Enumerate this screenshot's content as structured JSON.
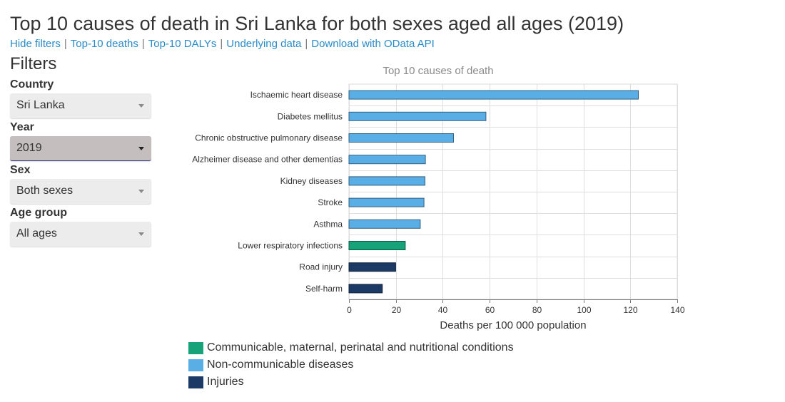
{
  "page": {
    "title": "Top 10 causes of death in Sri Lanka for both sexes aged all ages (2019)",
    "links": [
      "Hide filters",
      "Top-10 deaths",
      "Top-10 DALYs",
      "Underlying data",
      "Download with OData API"
    ]
  },
  "filters": {
    "title": "Filters",
    "country": {
      "label": "Country",
      "value": "Sri Lanka"
    },
    "year": {
      "label": "Year",
      "value": "2019"
    },
    "sex": {
      "label": "Sex",
      "value": "Both sexes"
    },
    "age_group": {
      "label": "Age group",
      "value": "All ages"
    }
  },
  "colors": {
    "communicable": "#16a37a",
    "noncommunicable": "#5aaee6",
    "injuries": "#1c3a66"
  },
  "chart_data": {
    "type": "bar",
    "orientation": "horizontal",
    "title": "Top 10 causes of death",
    "xlabel": "Deaths per 100 000 population",
    "ylabel": "",
    "xlim": [
      0,
      140
    ],
    "xticks": [
      0,
      20,
      40,
      60,
      80,
      100,
      120,
      140
    ],
    "grid": true,
    "categories": [
      "Ischaemic heart disease",
      "Diabetes mellitus",
      "Chronic obstructive pulmonary disease",
      "Alzheimer disease and other dementias",
      "Kidney diseases",
      "Stroke",
      "Asthma",
      "Lower respiratory infections",
      "Road injury",
      "Self-harm"
    ],
    "values": [
      123.4,
      58.4,
      44.6,
      32.6,
      32.4,
      32.0,
      30.4,
      24.0,
      19.9,
      14.2
    ],
    "groups": [
      "noncommunicable",
      "noncommunicable",
      "noncommunicable",
      "noncommunicable",
      "noncommunicable",
      "noncommunicable",
      "noncommunicable",
      "communicable",
      "injuries",
      "injuries"
    ],
    "legend": [
      {
        "key": "communicable",
        "label": "Communicable, maternal, perinatal and nutritional conditions"
      },
      {
        "key": "noncommunicable",
        "label": "Non-communicable diseases"
      },
      {
        "key": "injuries",
        "label": "Injuries"
      }
    ],
    "legend_position": "bottom-left"
  }
}
